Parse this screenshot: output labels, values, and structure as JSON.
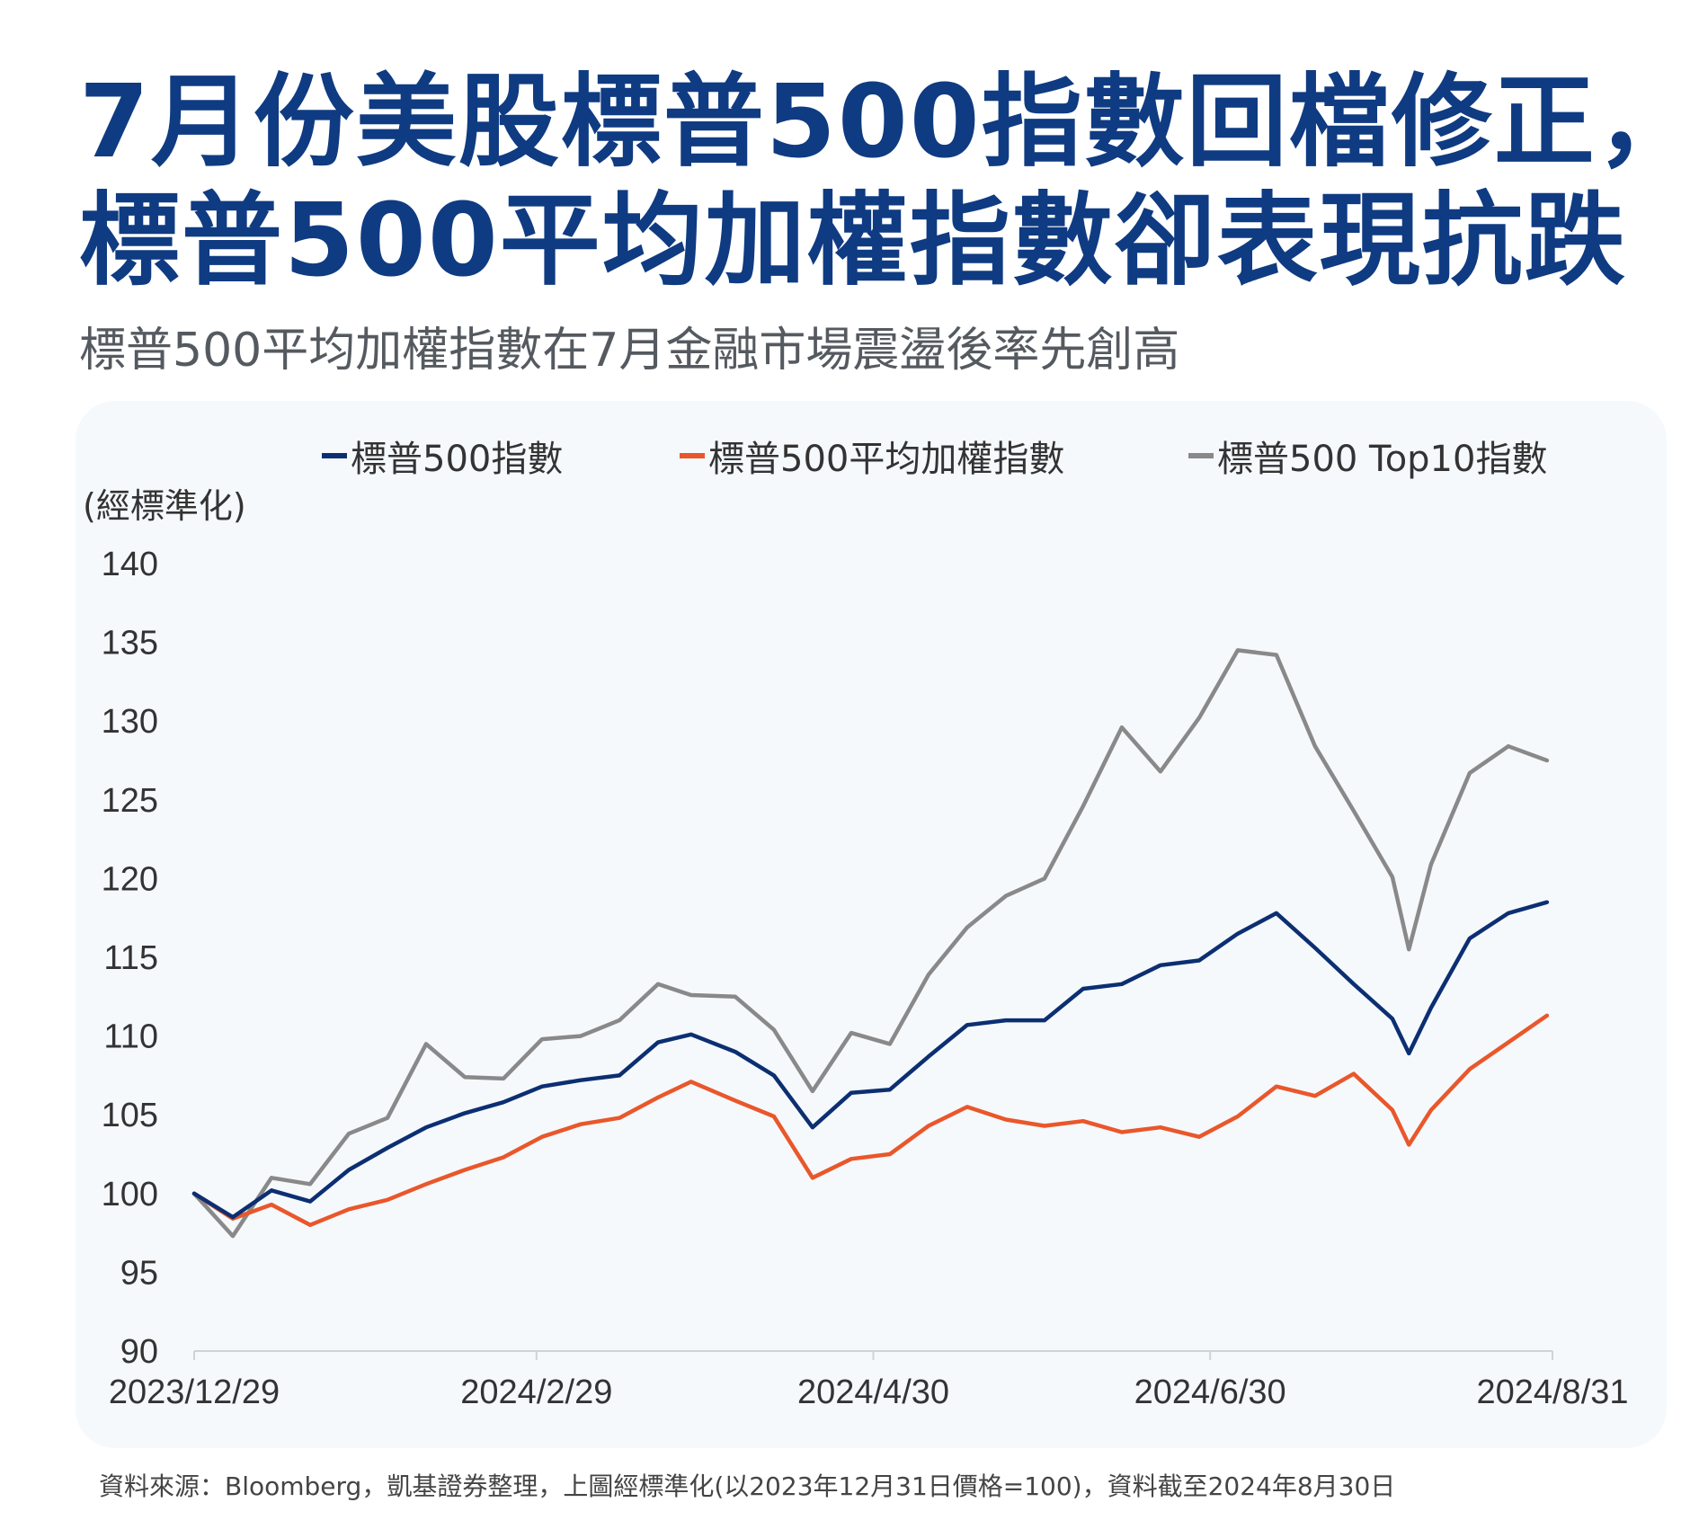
{
  "header": {
    "title_line1": "7月份美股標普500指數回檔修正，",
    "title_line2": "標普500平均加權指數卻表現抗跌",
    "subtitle": "標普500平均加權指數在7月金融市場震盪後率先創高"
  },
  "footer": {
    "source": "資料來源：Bloomberg，凱基證券整理，上圖經標準化(以2023年12月31日價格=100)，資料截至2024年8月30日"
  },
  "chart_data": {
    "type": "line",
    "title": "",
    "xlabel": "",
    "ylabel": "(經標準化)",
    "ylim": [
      90,
      140
    ],
    "yticks": [
      90,
      95,
      100,
      105,
      110,
      115,
      120,
      125,
      130,
      135,
      140
    ],
    "xlim": [
      "2023/12/29",
      "2024/8/31"
    ],
    "xticks": [
      "2023/12/29",
      "2024/2/29",
      "2024/4/30",
      "2024/6/30",
      "2024/8/31"
    ],
    "grid": false,
    "legend": "top",
    "x": [
      "2023/12/29",
      "2024/1/5",
      "2024/1/12",
      "2024/1/19",
      "2024/1/26",
      "2024/2/2",
      "2024/2/9",
      "2024/2/16",
      "2024/2/23",
      "2024/3/1",
      "2024/3/8",
      "2024/3/15",
      "2024/3/22",
      "2024/3/28",
      "2024/4/5",
      "2024/4/12",
      "2024/4/19",
      "2024/4/26",
      "2024/5/3",
      "2024/5/10",
      "2024/5/17",
      "2024/5/24",
      "2024/5/31",
      "2024/6/7",
      "2024/6/14",
      "2024/6/21",
      "2024/6/28",
      "2024/7/5",
      "2024/7/12",
      "2024/7/19",
      "2024/7/26",
      "2024/8/2",
      "2024/8/5",
      "2024/8/9",
      "2024/8/16",
      "2024/8/23",
      "2024/8/30"
    ],
    "series": [
      {
        "name": "標普500指數",
        "color": "#0c2f72",
        "values": [
          100,
          98.5,
          100.2,
          99.5,
          101.5,
          102.9,
          104.2,
          105.1,
          105.8,
          106.8,
          107.2,
          107.5,
          109.6,
          110.1,
          109.0,
          107.5,
          104.2,
          106.4,
          106.6,
          108.7,
          110.7,
          111.0,
          111.0,
          113.0,
          113.3,
          114.5,
          114.8,
          116.5,
          117.8,
          115.6,
          113.3,
          111.1,
          108.9,
          111.8,
          116.2,
          117.8,
          118.5
        ]
      },
      {
        "name": "標普500平均加權指數",
        "color": "#e9572b",
        "values": [
          100,
          98.4,
          99.3,
          98.0,
          99.0,
          99.6,
          100.6,
          101.5,
          102.3,
          103.6,
          104.4,
          104.8,
          106.1,
          107.1,
          105.9,
          104.9,
          101.0,
          102.2,
          102.5,
          104.3,
          105.5,
          104.7,
          104.3,
          104.6,
          103.9,
          104.2,
          103.6,
          104.9,
          106.8,
          106.2,
          107.6,
          105.3,
          103.1,
          105.3,
          107.9,
          109.6,
          111.3
        ]
      },
      {
        "name": "標普500 Top10指數",
        "color": "#898989",
        "values": [
          100,
          97.3,
          101.0,
          100.6,
          103.8,
          104.8,
          109.5,
          107.4,
          107.3,
          109.8,
          110.0,
          111.0,
          113.3,
          112.6,
          112.5,
          110.4,
          106.5,
          110.2,
          109.5,
          113.9,
          116.9,
          118.9,
          120.0,
          124.6,
          129.6,
          126.8,
          130.2,
          134.5,
          134.2,
          128.4,
          124.3,
          120.1,
          115.5,
          120.9,
          126.7,
          128.4,
          127.5
        ]
      }
    ]
  }
}
